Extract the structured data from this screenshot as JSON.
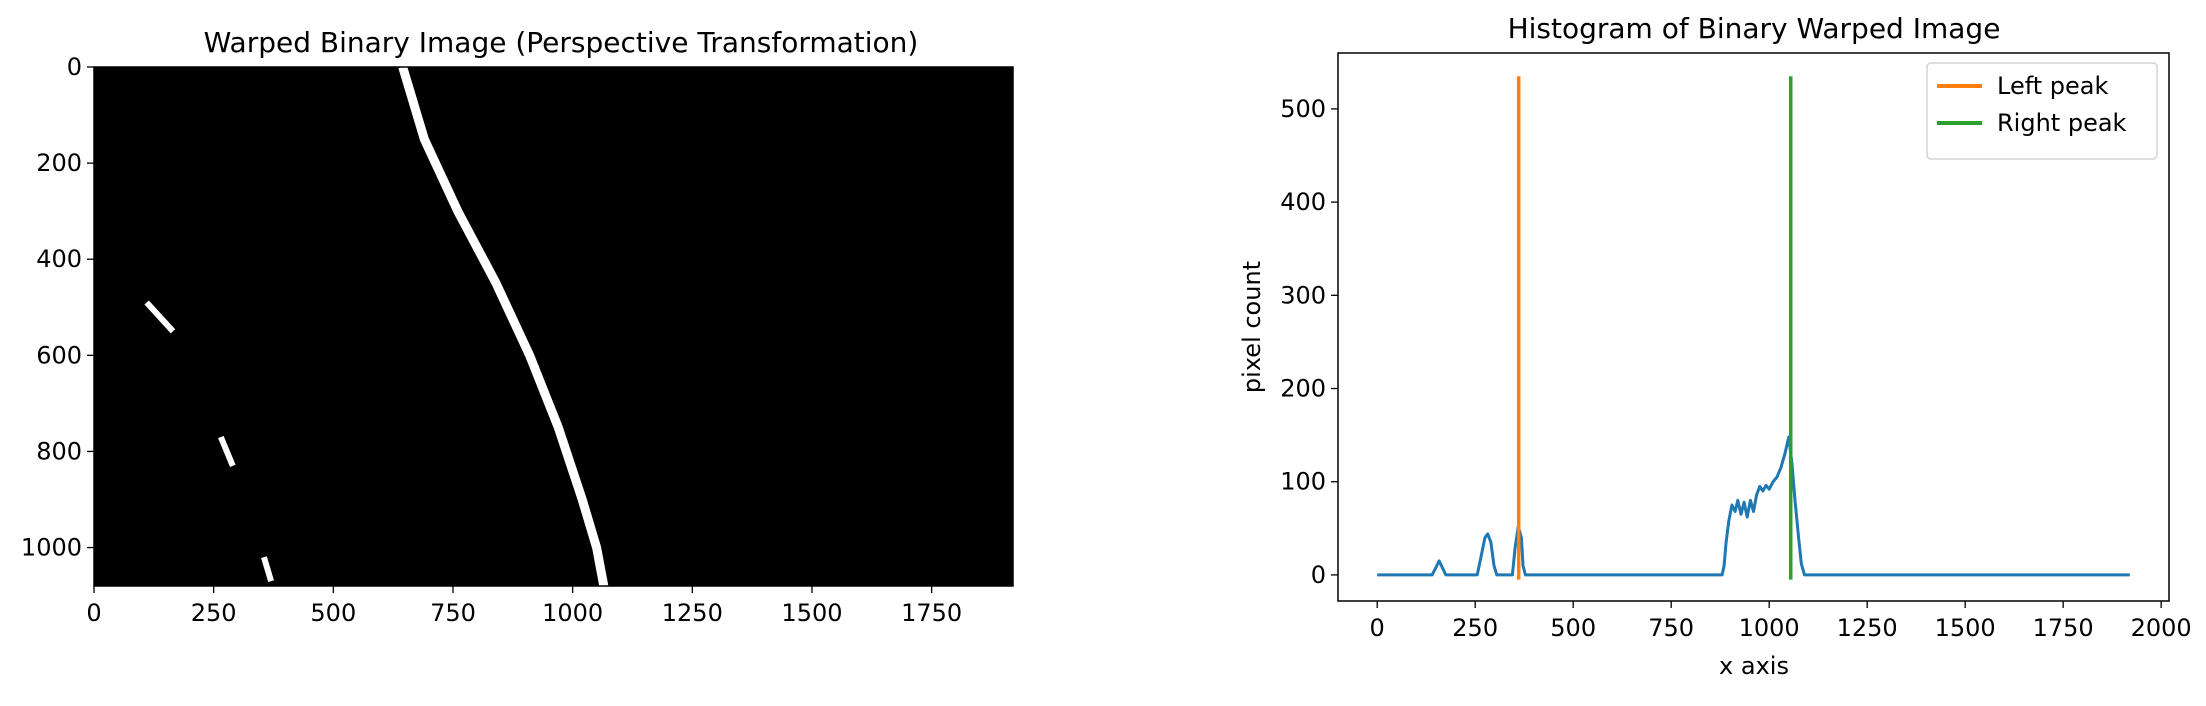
{
  "chart_data": [
    {
      "type": "image",
      "title": "Warped Binary Image (Perspective Transformation)",
      "xlabel": "",
      "ylabel": "",
      "xlim": [
        0,
        1920
      ],
      "ylim": [
        1080,
        0
      ],
      "xticks": [
        0,
        250,
        500,
        750,
        1000,
        1250,
        1500,
        1750
      ],
      "yticks": [
        0,
        200,
        400,
        600,
        800,
        1000
      ],
      "background": "#000000",
      "foreground": "#ffffff",
      "right_lane_line": [
        [
          645,
          0
        ],
        [
          690,
          150
        ],
        [
          760,
          300
        ],
        [
          840,
          450
        ],
        [
          910,
          600
        ],
        [
          970,
          750
        ],
        [
          1020,
          900
        ],
        [
          1050,
          1000
        ],
        [
          1065,
          1080
        ]
      ],
      "left_marks": [
        [
          [
            110,
            490
          ],
          [
            165,
            550
          ]
        ],
        [
          [
            265,
            770
          ],
          [
            290,
            830
          ]
        ],
        [
          [
            355,
            1020
          ],
          [
            370,
            1070
          ]
        ]
      ]
    },
    {
      "type": "line",
      "title": "Histogram of Binary Warped Image",
      "xlabel": "x axis",
      "ylabel": "pixel count",
      "xlim": [
        -100,
        2020
      ],
      "ylim": [
        -28,
        560
      ],
      "xticks": [
        0,
        250,
        500,
        750,
        1000,
        1250,
        1500,
        1750,
        2000
      ],
      "yticks": [
        0,
        100,
        200,
        300,
        400,
        500
      ],
      "legend_position": "top-right",
      "series": [
        {
          "color": "#1f77b4",
          "points": [
            [
              0,
              0
            ],
            [
              140,
              0
            ],
            [
              150,
              8
            ],
            [
              158,
              15
            ],
            [
              166,
              8
            ],
            [
              175,
              0
            ],
            [
              255,
              0
            ],
            [
              265,
              20
            ],
            [
              275,
              40
            ],
            [
              282,
              44
            ],
            [
              290,
              35
            ],
            [
              298,
              10
            ],
            [
              305,
              0
            ],
            [
              345,
              0
            ],
            [
              352,
              30
            ],
            [
              360,
              52
            ],
            [
              368,
              40
            ],
            [
              372,
              10
            ],
            [
              378,
              0
            ],
            [
              880,
              0
            ],
            [
              885,
              10
            ],
            [
              890,
              35
            ],
            [
              897,
              58
            ],
            [
              905,
              75
            ],
            [
              913,
              68
            ],
            [
              920,
              80
            ],
            [
              928,
              65
            ],
            [
              936,
              78
            ],
            [
              944,
              62
            ],
            [
              952,
              80
            ],
            [
              960,
              68
            ],
            [
              968,
              86
            ],
            [
              976,
              95
            ],
            [
              984,
              90
            ],
            [
              992,
              96
            ],
            [
              1000,
              92
            ],
            [
              1010,
              100
            ],
            [
              1020,
              105
            ],
            [
              1030,
              115
            ],
            [
              1040,
              130
            ],
            [
              1050,
              148
            ],
            [
              1058,
              120
            ],
            [
              1066,
              80
            ],
            [
              1075,
              40
            ],
            [
              1082,
              12
            ],
            [
              1090,
              0
            ],
            [
              1920,
              0
            ]
          ]
        },
        {
          "name": "Left peak",
          "color": "#ff7f0e",
          "x": 361,
          "y_range": [
            -5,
            535
          ]
        },
        {
          "name": "Right peak",
          "color": "#2ca02c",
          "x": 1055,
          "y_range": [
            -5,
            535
          ]
        }
      ]
    }
  ]
}
